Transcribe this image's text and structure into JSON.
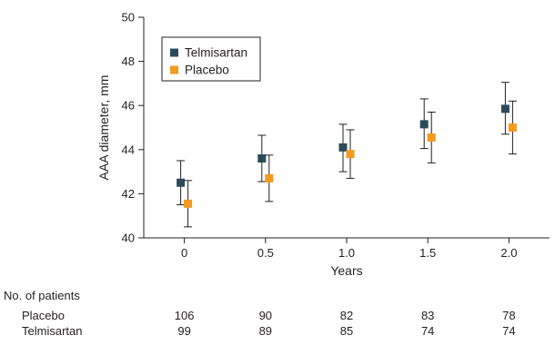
{
  "chart_data": {
    "type": "scatter",
    "xlabel": "Years",
    "ylabel": "AAA diameter, mm",
    "xlim": [
      -0.25,
      2.25
    ],
    "ylim": [
      40,
      50
    ],
    "x_ticks": [
      "0",
      "0.5",
      "1.0",
      "1.5",
      "2.0"
    ],
    "x_tick_values": [
      0,
      0.5,
      1.0,
      1.5,
      2.0
    ],
    "y_ticks": [
      "40",
      "42",
      "44",
      "46",
      "48",
      "50"
    ],
    "y_tick_values": [
      40,
      42,
      44,
      46,
      48,
      50
    ],
    "grid": false,
    "legend_position": "top-left",
    "series": [
      {
        "name": "Telmisartan",
        "color": "#2c4b5a",
        "x": [
          0,
          0.5,
          1.0,
          1.5,
          2.0
        ],
        "y": [
          42.5,
          43.6,
          44.1,
          45.15,
          45.85
        ],
        "y_lower": [
          41.5,
          42.55,
          43.0,
          44.05,
          44.7
        ],
        "y_upper": [
          43.5,
          44.65,
          45.15,
          46.3,
          47.05
        ]
      },
      {
        "name": "Placebo",
        "color": "#f39a1f",
        "x": [
          0,
          0.5,
          1.0,
          1.5,
          2.0
        ],
        "y": [
          41.55,
          42.7,
          43.8,
          44.55,
          45.0
        ],
        "y_lower": [
          40.5,
          41.65,
          42.7,
          43.4,
          43.8
        ],
        "y_upper": [
          42.6,
          43.75,
          44.9,
          45.7,
          46.2
        ]
      }
    ]
  },
  "risk_table": {
    "title": "No. of patients",
    "rows": [
      {
        "label": "Placebo",
        "values": [
          "106",
          "90",
          "82",
          "83",
          "78"
        ]
      },
      {
        "label": "Telmisartan",
        "values": [
          "99",
          "89",
          "85",
          "74",
          "74"
        ]
      }
    ]
  }
}
